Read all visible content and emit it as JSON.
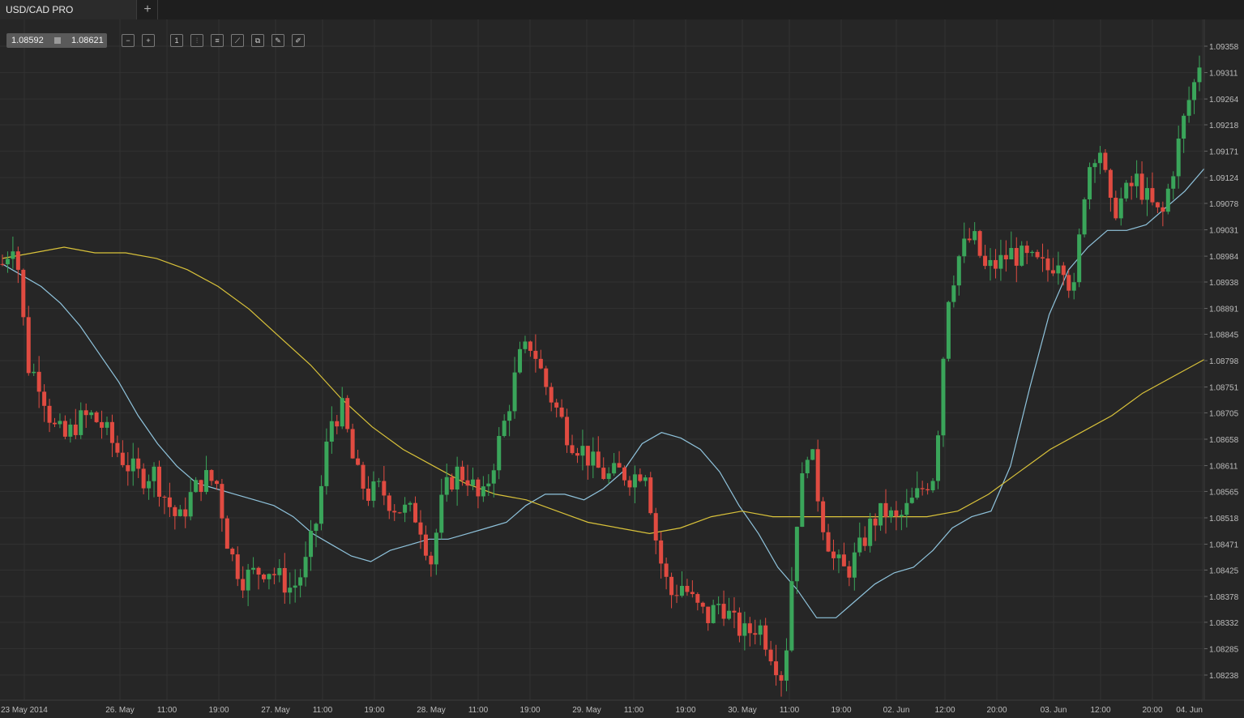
{
  "window": {
    "tab_title": "USD/CAD PRO",
    "add_tab_label": "+"
  },
  "quote": {
    "bid": "1.08592",
    "ask": "1.08621"
  },
  "toolbar": {
    "tools": [
      {
        "name": "zoom-out-icon",
        "glyph": "−"
      },
      {
        "name": "zoom-in-icon",
        "glyph": "+"
      },
      {
        "name": "timeframe-icon",
        "glyph": "1"
      },
      {
        "name": "chart-type-candles-icon",
        "glyph": "⫶"
      },
      {
        "name": "settings-sliders-icon",
        "glyph": "≡"
      },
      {
        "name": "indicators-icon",
        "glyph": "⟋"
      },
      {
        "name": "compare-icon",
        "glyph": "⧉"
      },
      {
        "name": "edit-icon",
        "glyph": "✎"
      },
      {
        "name": "draw-icon",
        "glyph": "✐"
      }
    ]
  },
  "colors": {
    "background": "#262626",
    "grid": "#323232",
    "bull": "#3aa55a",
    "bear": "#e04b41",
    "ma_fast": "#8fc3dc",
    "ma_slow": "#d9c23a",
    "axis_text": "#bdbdbd"
  },
  "chart_data": {
    "type": "candlestick",
    "symbol": "USD/CAD PRO",
    "ylim": [
      1.0821,
      1.0939
    ],
    "y_ticks": [
      "1.09358",
      "1.09311",
      "1.09264",
      "1.09218",
      "1.09171",
      "1.09124",
      "1.09078",
      "1.09031",
      "1.08984",
      "1.08938",
      "1.08891",
      "1.08845",
      "1.08798",
      "1.08751",
      "1.08705",
      "1.08658",
      "1.08611",
      "1.08565",
      "1.08518",
      "1.08471",
      "1.08425",
      "1.08378",
      "1.08332",
      "1.08285",
      "1.08238"
    ],
    "x_tick_labels": [
      "23 May 2014",
      "26. May",
      "11:00",
      "19:00",
      "27. May",
      "11:00",
      "19:00",
      "28. May",
      "11:00",
      "19:00",
      "29. May",
      "11:00",
      "19:00",
      "30. May",
      "11:00",
      "19:00",
      "02. Jun",
      "12:00",
      "20:00",
      "03. Jun",
      "12:00",
      "20:00",
      "04. Jun"
    ],
    "close_path": [
      1.0897,
      1.0902,
      1.0879,
      1.0876,
      1.0868,
      1.0866,
      1.0869,
      1.087,
      1.0868,
      1.0864,
      1.0861,
      1.0859,
      1.086,
      1.0855,
      1.0851,
      1.0856,
      1.0859,
      1.0858,
      1.0846,
      1.0841,
      1.0842,
      1.0843,
      1.0841,
      1.0839,
      1.0843,
      1.0852,
      1.0869,
      1.0871,
      1.086,
      1.0856,
      1.0857,
      1.0854,
      1.0853,
      1.0852,
      1.0844,
      1.0856,
      1.086,
      1.0859,
      1.0854,
      1.0862,
      1.087,
      1.088,
      1.0883,
      1.0876,
      1.0871,
      1.0866,
      1.0864,
      1.0861,
      1.0859,
      1.086,
      1.0859,
      1.0861,
      1.0846,
      1.0838,
      1.084,
      1.0836,
      1.0834,
      1.0837,
      1.0833,
      1.0831,
      1.0833,
      1.0828,
      1.0823,
      1.0851,
      1.0866,
      1.0852,
      1.0844,
      1.0842,
      1.0846,
      1.0851,
      1.0853,
      1.0851,
      1.0854,
      1.0857,
      1.086,
      1.0891,
      1.0899,
      1.0902,
      1.0896,
      1.0897,
      1.0899,
      1.0898,
      1.0897,
      1.0896,
      1.0899,
      1.0891,
      1.0913,
      1.0919,
      1.0906,
      1.0909,
      1.0912,
      1.0908,
      1.0905,
      1.0915,
      1.0925,
      1.0932
    ],
    "indicators": [
      {
        "type": "moving average (fast)",
        "color": "#8fc3dc",
        "values": [
          1.0897,
          1.0895,
          1.0893,
          1.089,
          1.0886,
          1.0881,
          1.0876,
          1.087,
          1.0865,
          1.0861,
          1.0858,
          1.0857,
          1.0856,
          1.0855,
          1.0854,
          1.0852,
          1.0849,
          1.0847,
          1.0845,
          1.0844,
          1.0846,
          1.0847,
          1.0848,
          1.0848,
          1.0849,
          1.085,
          1.0851,
          1.0854,
          1.0856,
          1.0856,
          1.0855,
          1.0857,
          1.086,
          1.0865,
          1.0867,
          1.0866,
          1.0864,
          1.086,
          1.0854,
          1.0849,
          1.0843,
          1.0839,
          1.0834,
          1.0834,
          1.0837,
          1.084,
          1.0842,
          1.0843,
          1.0846,
          1.085,
          1.0852,
          1.0853,
          1.0861,
          1.0875,
          1.0888,
          1.0896,
          1.09,
          1.0903,
          1.0903,
          1.0904,
          1.0907,
          1.091,
          1.0914
        ]
      },
      {
        "type": "moving average (slow)",
        "color": "#d9c23a",
        "values": [
          1.0898,
          1.0899,
          1.09,
          1.0899,
          1.0899,
          1.0898,
          1.0896,
          1.0893,
          1.0889,
          1.0884,
          1.0879,
          1.0873,
          1.0868,
          1.0864,
          1.0861,
          1.0858,
          1.0856,
          1.0855,
          1.0853,
          1.0851,
          1.085,
          1.0849,
          1.085,
          1.0852,
          1.0853,
          1.0852,
          1.0852,
          1.0852,
          1.0852,
          1.0852,
          1.0852,
          1.0853,
          1.0856,
          1.086,
          1.0864,
          1.0867,
          1.087,
          1.0874,
          1.0877,
          1.088
        ]
      }
    ],
    "grid": true,
    "legend": "none"
  }
}
